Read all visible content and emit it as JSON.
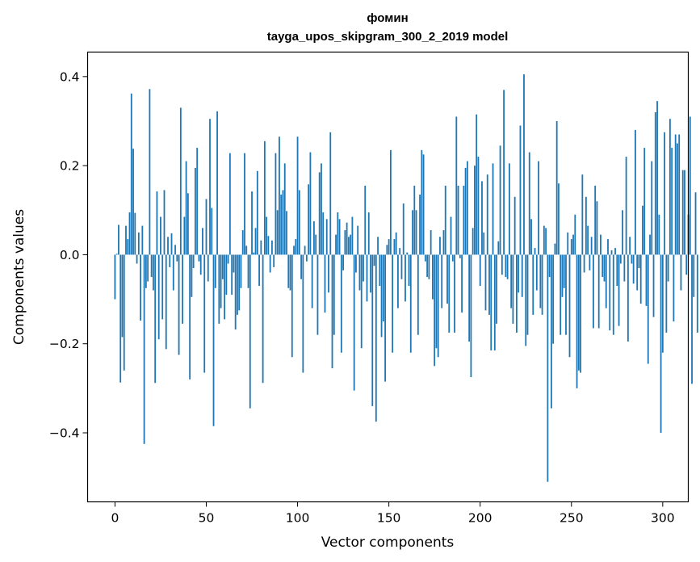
{
  "chart_data": {
    "type": "bar",
    "title": "фомин",
    "subtitle": "tayga_upos_skipgram_300_2_2019 model",
    "xlabel": "Vector components",
    "ylabel": "Components values",
    "xlim": [
      -15,
      314
    ],
    "ylim": [
      -0.555,
      0.455
    ],
    "xticks": [
      0,
      50,
      100,
      150,
      200,
      250,
      300
    ],
    "xtick_labels": [
      "0",
      "50",
      "100",
      "150",
      "200",
      "250",
      "300"
    ],
    "yticks": [
      -0.4,
      -0.2,
      0.0,
      0.2,
      0.4
    ],
    "ytick_labels": [
      "−0.4",
      "−0.2",
      "0.0",
      "0.2",
      "0.4"
    ],
    "bar_color": "#1f77b4",
    "grid": false,
    "legend": "none",
    "series": [
      {
        "name": "фомин",
        "values": [
          -0.1,
          0.002,
          0.067,
          -0.287,
          -0.185,
          -0.26,
          0.065,
          0.035,
          0.095,
          0.362,
          0.238,
          0.094,
          -0.02,
          0.05,
          -0.148,
          0.065,
          -0.425,
          -0.075,
          -0.06,
          0.372,
          -0.05,
          -0.08,
          -0.288,
          0.142,
          -0.19,
          0.085,
          -0.145,
          0.145,
          -0.212,
          0.04,
          -0.028,
          0.048,
          -0.08,
          0.022,
          -0.015,
          -0.225,
          0.33,
          -0.155,
          0.085,
          0.21,
          0.138,
          -0.28,
          -0.095,
          -0.03,
          0.195,
          0.24,
          -0.015,
          -0.045,
          0.06,
          -0.265,
          0.125,
          -0.06,
          0.305,
          0.105,
          -0.385,
          -0.075,
          0.322,
          -0.155,
          -0.12,
          -0.055,
          -0.145,
          -0.09,
          -0.02,
          0.228,
          -0.09,
          -0.04,
          -0.168,
          -0.135,
          -0.125,
          -0.075,
          0.055,
          0.228,
          0.02,
          -0.075,
          -0.345,
          0.142,
          0.005,
          0.06,
          0.188,
          -0.07,
          0.032,
          -0.288,
          0.255,
          0.085,
          0.042,
          -0.04,
          0.032,
          -0.028,
          0.228,
          0.1,
          0.265,
          0.135,
          0.145,
          0.205,
          0.098,
          -0.075,
          -0.08,
          -0.23,
          0.02,
          0.035,
          0.265,
          0.145,
          -0.055,
          -0.265,
          0.02,
          -0.015,
          0.158,
          0.23,
          -0.12,
          0.075,
          0.045,
          -0.18,
          0.185,
          0.205,
          0.095,
          -0.13,
          0.08,
          -0.085,
          0.275,
          -0.255,
          -0.18,
          0.045,
          0.095,
          0.08,
          -0.22,
          -0.035,
          0.055,
          0.072,
          0.04,
          0.045,
          0.085,
          -0.305,
          -0.04,
          0.065,
          -0.08,
          -0.21,
          -0.06,
          0.155,
          -0.105,
          0.095,
          -0.085,
          -0.34,
          -0.025,
          -0.375,
          0.04,
          -0.07,
          -0.185,
          -0.15,
          -0.285,
          0.022,
          0.035,
          0.235,
          -0.22,
          0.035,
          0.05,
          -0.12,
          0.015,
          -0.055,
          0.115,
          -0.105,
          0.005,
          -0.07,
          -0.22,
          0.1,
          0.155,
          0.1,
          -0.18,
          0.135,
          0.235,
          0.225,
          -0.015,
          -0.05,
          -0.055,
          0.055,
          -0.1,
          -0.25,
          -0.21,
          -0.23,
          0.04,
          -0.12,
          0.055,
          0.155,
          -0.11,
          -0.175,
          0.085,
          -0.015,
          -0.175,
          0.31,
          0.155,
          -0.008,
          -0.13,
          0.155,
          0.195,
          0.21,
          -0.195,
          -0.275,
          0.06,
          0.2,
          0.315,
          0.22,
          -0.07,
          0.165,
          0.05,
          -0.125,
          0.18,
          -0.135,
          -0.215,
          0.205,
          -0.215,
          -0.155,
          0.03,
          0.245,
          -0.045,
          0.37,
          -0.05,
          -0.055,
          0.205,
          -0.12,
          -0.155,
          0.13,
          -0.175,
          -0.085,
          0.29,
          -0.095,
          0.405,
          -0.205,
          -0.18,
          0.23,
          0.08,
          -0.135,
          0.015,
          -0.08,
          0.21,
          -0.12,
          -0.135,
          0.065,
          0.06,
          -0.51,
          -0.05,
          -0.345,
          -0.2,
          0.025,
          0.3,
          0.16,
          -0.18,
          -0.095,
          -0.075,
          -0.18,
          0.05,
          -0.23,
          0.035,
          0.045,
          0.09,
          -0.3,
          -0.26,
          -0.265,
          0.18,
          -0.04,
          0.13,
          0.065,
          -0.035,
          0.04,
          -0.165,
          0.155,
          0.12,
          -0.165,
          0.045,
          -0.05,
          -0.06,
          -0.12,
          0.035,
          -0.17,
          0.01,
          -0.18,
          0.015,
          -0.07,
          -0.16,
          -0.02,
          0.1,
          -0.06,
          0.22,
          -0.195,
          0.04,
          -0.02,
          -0.065,
          0.28,
          -0.08,
          -0.03,
          -0.11,
          0.11,
          0.24,
          -0.115,
          -0.245,
          0.045,
          0.21,
          -0.14,
          0.32,
          0.345,
          0.09,
          -0.4,
          -0.22,
          0.275,
          -0.175,
          -0.06,
          0.305,
          0.24,
          -0.15,
          0.27,
          0.25,
          0.27,
          -0.08,
          0.19,
          0.19,
          -0.045,
          0.09,
          0.31,
          -0.29,
          -0.095,
          0.14,
          -0.175
        ]
      }
    ]
  }
}
